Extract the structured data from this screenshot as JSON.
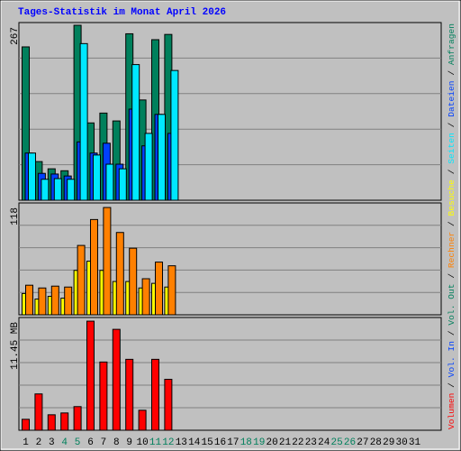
{
  "chart_data": [
    {
      "type": "bar",
      "title": "Tages-Statistik im Monat April 2026",
      "ylim": [
        0,
        267
      ],
      "yticks": [
        267
      ],
      "grid": true,
      "series": [
        {
          "name": "Anfragen",
          "color": "#00805c",
          "values": [
            234,
            59,
            48,
            45,
            267,
            118,
            133,
            121,
            254,
            153,
            245,
            253,
            0,
            0,
            0,
            0,
            0,
            0,
            0,
            0,
            0,
            0,
            0,
            0,
            0,
            0,
            0,
            0,
            0,
            0,
            0
          ]
        },
        {
          "name": "Dateien",
          "color": "#0040ff",
          "values": [
            72,
            41,
            40,
            37,
            89,
            72,
            87,
            55,
            139,
            83,
            131,
            102,
            0,
            0,
            0,
            0,
            0,
            0,
            0,
            0,
            0,
            0,
            0,
            0,
            0,
            0,
            0,
            0,
            0,
            0,
            0
          ]
        },
        {
          "name": "Seiten",
          "color": "#00e8ff",
          "values": [
            72,
            32,
            33,
            32,
            239,
            69,
            55,
            48,
            207,
            102,
            131,
            198,
            0,
            0,
            0,
            0,
            0,
            0,
            0,
            0,
            0,
            0,
            0,
            0,
            0,
            0,
            0,
            0,
            0,
            0,
            0
          ]
        }
      ]
    },
    {
      "type": "bar",
      "ylim": [
        0,
        118
      ],
      "yticks": [
        118
      ],
      "grid": true,
      "series": [
        {
          "name": "Besuche",
          "color": "#ffff00",
          "values": [
            23,
            17,
            20,
            18,
            48,
            58,
            48,
            36,
            36,
            29,
            34,
            30,
            0,
            0,
            0,
            0,
            0,
            0,
            0,
            0,
            0,
            0,
            0,
            0,
            0,
            0,
            0,
            0,
            0,
            0,
            0
          ]
        },
        {
          "name": "Rechner",
          "color": "#ff8000",
          "values": [
            32,
            29,
            31,
            30,
            75,
            103,
            116,
            89,
            72,
            39,
            57,
            53,
            0,
            0,
            0,
            0,
            0,
            0,
            0,
            0,
            0,
            0,
            0,
            0,
            0,
            0,
            0,
            0,
            0,
            0,
            0
          ]
        }
      ]
    },
    {
      "type": "bar",
      "ylim": [
        0,
        11.45
      ],
      "yticks": [
        {
          "value": 11.45,
          "label": "11.45 MB"
        }
      ],
      "grid": true,
      "series": [
        {
          "name": "Volumen",
          "color": "#ff0000",
          "values": [
            1.14,
            3.78,
            1.61,
            1.8,
            2.46,
            11.35,
            7.1,
            10.5,
            7.38,
            2.08,
            7.38,
            5.3,
            0,
            0,
            0,
            0,
            0,
            0,
            0,
            0,
            0,
            0,
            0,
            0,
            0,
            0,
            0,
            0,
            0,
            0,
            0
          ]
        }
      ],
      "extra_legend": [
        {
          "name": "Vol. In",
          "color": "#0040ff"
        },
        {
          "name": "Vol. Out",
          "color": "#00805c"
        }
      ],
      "categories": [
        "1",
        "2",
        "3",
        "4",
        "5",
        "6",
        "7",
        "8",
        "9",
        "10",
        "11",
        "12",
        "13",
        "14",
        "15",
        "16",
        "17",
        "18",
        "19",
        "20",
        "21",
        "22",
        "23",
        "24",
        "25",
        "26",
        "27",
        "28",
        "29",
        "30",
        "31"
      ],
      "highlight_categories": [
        "4",
        "5",
        "11",
        "12",
        "18",
        "19",
        "25",
        "26"
      ],
      "highlight_color": "#00805c"
    }
  ]
}
